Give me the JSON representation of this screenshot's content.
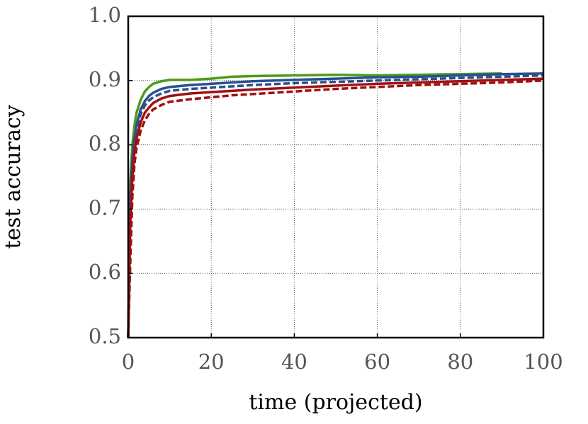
{
  "chart_data": {
    "type": "line",
    "x_label": "time (projected)",
    "y_label": "test accuracy",
    "x": [
      0,
      0.5,
      1,
      1.5,
      2,
      3,
      4,
      5,
      6,
      8,
      10,
      15,
      20,
      25,
      30,
      40,
      50,
      60,
      70,
      80,
      90,
      100
    ],
    "series": [
      {
        "color": "#4d9a1c",
        "dash": false,
        "values": [
          0.5,
          0.74,
          0.8,
          0.83,
          0.85,
          0.87,
          0.883,
          0.89,
          0.895,
          0.899,
          0.901,
          0.901,
          0.903,
          0.906,
          0.907,
          0.908,
          0.909,
          0.908,
          0.909,
          0.91,
          0.911,
          null
        ]
      },
      {
        "color": "#2a4f8f",
        "dash": false,
        "values": [
          0.5,
          0.72,
          0.78,
          0.81,
          0.83,
          0.855,
          0.868,
          0.876,
          0.881,
          0.887,
          0.89,
          0.893,
          0.895,
          0.897,
          0.899,
          0.901,
          0.903,
          0.905,
          0.906,
          0.908,
          0.91,
          0.911
        ]
      },
      {
        "color": "#2a4f8f",
        "dash": true,
        "values": [
          0.5,
          0.7,
          0.77,
          0.8,
          0.822,
          0.848,
          0.861,
          0.869,
          0.874,
          0.88,
          0.884,
          0.887,
          0.889,
          0.891,
          0.893,
          0.896,
          0.898,
          0.9,
          0.902,
          0.904,
          0.906,
          0.908
        ]
      },
      {
        "color": "#a01010",
        "dash": false,
        "values": [
          0.5,
          0.68,
          0.75,
          0.79,
          0.81,
          0.835,
          0.85,
          0.858,
          0.865,
          0.872,
          0.876,
          0.88,
          0.882,
          0.884,
          0.886,
          0.889,
          0.892,
          0.895,
          0.897,
          0.899,
          0.901,
          0.903
        ]
      },
      {
        "color": "#a01010",
        "dash": true,
        "values": [
          0.5,
          0.62,
          0.72,
          0.77,
          0.795,
          0.822,
          0.838,
          0.848,
          0.855,
          0.862,
          0.867,
          0.871,
          0.874,
          0.877,
          0.879,
          0.883,
          0.887,
          0.89,
          0.893,
          0.895,
          0.897,
          0.9
        ]
      }
    ],
    "xlim": [
      0,
      100
    ],
    "ylim": [
      0.5,
      1.0
    ],
    "xticks": [
      0,
      20,
      40,
      60,
      80,
      100
    ],
    "yticks": [
      0.5,
      0.6,
      0.7,
      0.8,
      0.9,
      {
        "value": 1,
        "label": "1.0"
      }
    ],
    "grid": true
  }
}
